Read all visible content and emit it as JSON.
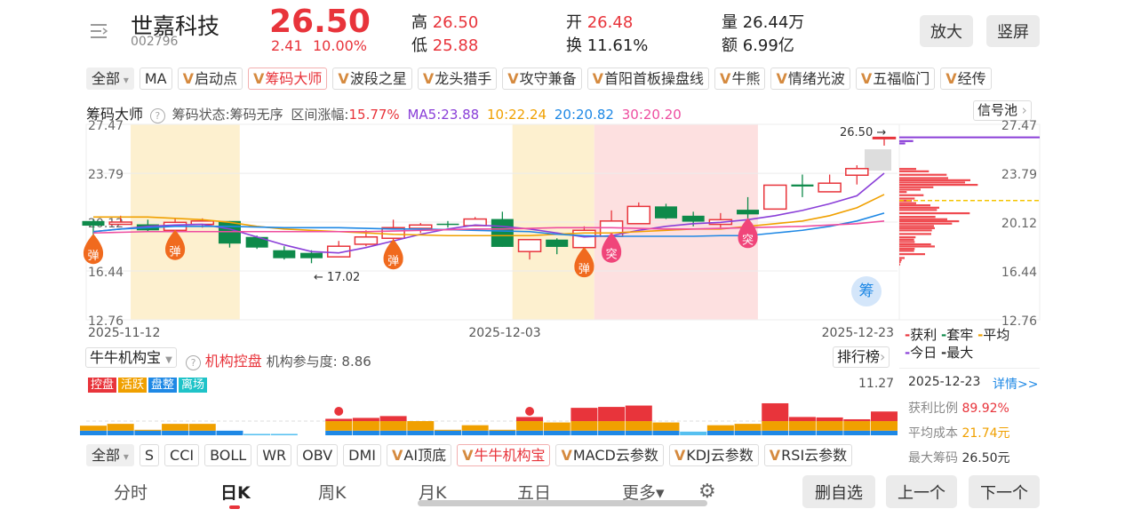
{
  "header": {
    "name": "世嘉科技",
    "code": "002796",
    "price": "26.50",
    "change": "2.41",
    "change_pct": "10.00%",
    "high_label": "高",
    "high": "26.50",
    "low_label": "低",
    "low": "25.88",
    "open_label": "开",
    "open": "26.48",
    "turnover_label": "换",
    "turnover": "11.61%",
    "volume_label": "量",
    "volume": "26.44万",
    "amount_label": "额",
    "amount": "6.99亿",
    "zoom_btn": "放大",
    "portrait_btn": "竖屏"
  },
  "indicator_tabs": [
    {
      "label": "全部",
      "type": "all"
    },
    {
      "label": "MA"
    },
    {
      "label": "启动点",
      "v": true
    },
    {
      "label": "筹码大师",
      "v": true,
      "selected": true
    },
    {
      "label": "波段之星",
      "v": true
    },
    {
      "label": "龙头猎手",
      "v": true
    },
    {
      "label": "攻守兼备",
      "v": true
    },
    {
      "label": "首阳首板操盘线",
      "v": true
    },
    {
      "label": "牛熊",
      "v": true
    },
    {
      "label": "情绪光波",
      "v": true
    },
    {
      "label": "五福临门",
      "v": true
    },
    {
      "label": "经传",
      "v": true
    }
  ],
  "v_mark": "V",
  "chip_line": {
    "title": "筹码大师",
    "help": "?",
    "status": "筹码状态:筹码无序",
    "range_label": "区间涨幅:",
    "range_value": "15.77%",
    "ma5": "MA5:23.88",
    "ma10": "10:22.24",
    "ma20": "20:20.82",
    "ma30": "30:20.20",
    "signal_btn": "信号池"
  },
  "colors": {
    "up": "#e8343b",
    "down": "#0e8a4a",
    "ma5": "#8a3fd8",
    "ma10": "#f0a000",
    "ma20": "#1e88e5",
    "ma30": "#ee4ea0",
    "band_yellow": "#fdf0cf",
    "band_pink": "#fde0e0"
  },
  "chart_data": {
    "type": "candlestick",
    "y_ticks": [
      "27.47",
      "23.79",
      "20.12",
      "16.44",
      "12.76"
    ],
    "ylim": [
      12.76,
      27.47
    ],
    "x_labels": [
      "2025-11-12",
      "2025-12-03",
      "2025-12-23"
    ],
    "candles": [
      [
        20.2,
        19.85,
        20.3,
        19.1
      ],
      [
        19.95,
        20.12,
        20.6,
        19.9
      ],
      [
        19.95,
        19.5,
        20.3,
        19.4
      ],
      [
        19.5,
        20.1,
        20.4,
        19.3
      ],
      [
        19.95,
        20.2,
        20.4,
        19.7
      ],
      [
        20.2,
        18.5,
        20.2,
        18.2
      ],
      [
        19.0,
        18.2,
        19.1,
        18.1
      ],
      [
        18.0,
        17.4,
        18.3,
        17.3
      ],
      [
        17.8,
        17.4,
        18.0,
        17.02
      ],
      [
        17.5,
        18.3,
        18.7,
        17.5
      ],
      [
        18.45,
        19.0,
        19.5,
        18.3
      ],
      [
        18.9,
        19.7,
        20.3,
        18.5
      ],
      [
        19.65,
        19.9,
        20.05,
        19.3
      ],
      [
        20.0,
        19.95,
        20.2,
        19.7
      ],
      [
        19.85,
        20.35,
        20.5,
        19.85
      ],
      [
        20.35,
        18.25,
        20.9,
        18.25
      ],
      [
        17.9,
        18.8,
        18.8,
        17.3
      ],
      [
        18.8,
        18.25,
        18.9,
        17.7
      ],
      [
        18.2,
        19.5,
        19.8,
        18.2
      ],
      [
        19.05,
        20.2,
        21.0,
        18.9
      ],
      [
        20.0,
        21.3,
        21.6,
        20.0
      ],
      [
        21.3,
        20.4,
        21.5,
        20.35
      ],
      [
        20.6,
        20.15,
        20.9,
        19.8
      ],
      [
        19.95,
        20.3,
        20.8,
        19.7
      ],
      [
        21.05,
        20.7,
        22.0,
        20.0
      ],
      [
        21.1,
        22.9,
        22.9,
        21.1
      ],
      [
        22.95,
        22.8,
        23.7,
        22.0
      ],
      [
        22.4,
        23.05,
        23.7,
        22.4
      ],
      [
        23.65,
        24.15,
        24.4,
        22.95
      ],
      [
        26.48,
        26.5,
        26.5,
        25.88
      ]
    ],
    "ma5": [
      19.4,
      19.6,
      19.8,
      19.9,
      19.95,
      19.6,
      19.0,
      18.4,
      17.9,
      17.8,
      18.2,
      18.7,
      19.2,
      19.6,
      19.9,
      19.8,
      19.6,
      19.3,
      19.0,
      19.1,
      19.5,
      19.8,
      20.0,
      20.1,
      20.3,
      20.6,
      21.0,
      21.5,
      22.1,
      23.8
    ],
    "ma10": [
      20.5,
      20.5,
      20.5,
      20.4,
      20.3,
      20.1,
      19.8,
      19.6,
      19.5,
      19.4,
      19.3,
      19.2,
      19.15,
      19.1,
      19.1,
      19.1,
      19.1,
      19.2,
      19.3,
      19.3,
      19.4,
      19.5,
      19.6,
      19.6,
      19.8,
      20.0,
      20.2,
      20.6,
      21.2,
      22.2
    ],
    "ma20": [
      19.4,
      19.6,
      19.7,
      19.8,
      19.8,
      19.8,
      19.75,
      19.7,
      19.7,
      19.7,
      19.65,
      19.6,
      19.6,
      19.55,
      19.5,
      19.45,
      19.4,
      19.2,
      19.1,
      19.05,
      19.05,
      19.05,
      19.05,
      19.1,
      19.1,
      19.3,
      19.5,
      19.8,
      20.2,
      20.8
    ],
    "ma30": [
      19.3,
      19.35,
      19.4,
      19.4,
      19.4,
      19.4,
      19.4,
      19.4,
      19.4,
      19.4,
      19.4,
      19.45,
      19.5,
      19.55,
      19.6,
      19.6,
      19.65,
      19.7,
      19.7,
      19.7,
      19.65,
      19.6,
      19.6,
      19.65,
      19.7,
      19.75,
      19.8,
      19.9,
      20.0,
      20.2
    ],
    "bands": [
      {
        "from": 2,
        "to": 5,
        "color": "yellow"
      },
      {
        "from": 16,
        "to": 18,
        "color": "yellow"
      },
      {
        "from": 19,
        "to": 24,
        "color": "pink"
      }
    ],
    "markers": [
      {
        "i": 0,
        "text": "弹",
        "price": 18.7
      },
      {
        "i": 3,
        "text": "弹",
        "price": 19.0
      },
      {
        "i": 11,
        "text": "弹",
        "price": 18.3
      },
      {
        "i": 18,
        "text": "弹",
        "price": 17.7
      },
      {
        "i": 19,
        "text": "突",
        "price": 18.8
      },
      {
        "i": 24,
        "text": "突",
        "price": 19.9
      }
    ],
    "low_annotation": "← 17.02",
    "last_price_label": "26.50 →",
    "chip_button": "筹",
    "chips": [
      [
        24.13,
        57
      ],
      [
        23.95,
        100
      ],
      [
        23.69,
        160
      ],
      [
        23.44,
        165
      ],
      [
        23.28,
        240
      ],
      [
        23.11,
        222
      ],
      [
        22.93,
        265
      ],
      [
        22.75,
        115
      ],
      [
        22.57,
        72
      ],
      [
        22.39,
        25
      ],
      [
        22.15,
        82
      ],
      [
        21.9,
        52
      ],
      [
        21.73,
        42
      ],
      [
        21.55,
        57
      ],
      [
        21.39,
        105
      ],
      [
        21.21,
        135
      ],
      [
        21.04,
        127
      ],
      [
        20.79,
        238
      ],
      [
        20.52,
        122
      ],
      [
        20.34,
        162
      ],
      [
        20.19,
        202
      ],
      [
        20.01,
        178
      ],
      [
        19.83,
        117
      ],
      [
        19.67,
        120
      ],
      [
        19.5,
        110
      ],
      [
        19.23,
        108
      ],
      [
        18.98,
        55
      ],
      [
        18.8,
        50
      ],
      [
        18.63,
        52
      ],
      [
        18.45,
        107
      ],
      [
        18.29,
        120
      ],
      [
        18.11,
        52
      ],
      [
        17.96,
        50
      ],
      [
        17.71,
        87
      ],
      [
        17.42,
        18
      ],
      [
        17.26,
        8
      ],
      [
        17.11,
        5
      ],
      [
        16.93,
        3
      ]
    ],
    "today_chips": [
      [
        26.23,
        47
      ],
      [
        26.05,
        20
      ]
    ],
    "avg_cost": 21.74
  },
  "chip_legend": {
    "profit": "获利",
    "trapped": "套牢",
    "average": "平均",
    "today": "今日",
    "max": "最大"
  },
  "chip_info": {
    "date": "2025-12-23",
    "detail": "详情>>",
    "profit_label": "获利比例",
    "profit": "89.92%",
    "avg_label": "平均成本",
    "avg": "21.74元",
    "max_label": "最大筹码",
    "max": "26.50元"
  },
  "inst": {
    "select": "牛牛机构宝",
    "help": "?",
    "title": "机构控盘",
    "degree": "机构参与度: 8.86",
    "rank_btn": "排行榜",
    "tags": [
      {
        "label": "控盘",
        "color": "#e8343b"
      },
      {
        "label": "活跃",
        "color": "#f0a000"
      },
      {
        "label": "盘整",
        "color": "#1e88e5"
      },
      {
        "label": "离场",
        "color": "#1fc3c8"
      }
    ],
    "max_label": "11.27",
    "ymax": 11.27,
    "bars": [
      [
        1,
        1.1,
        0
      ],
      [
        1,
        1.5,
        0
      ],
      [
        1,
        0.2,
        0
      ],
      [
        1,
        1.5,
        0
      ],
      [
        1,
        1.5,
        0
      ],
      [
        1,
        0,
        0
      ],
      [
        0.3,
        0,
        0
      ],
      [
        0.3,
        0,
        0
      ],
      [
        0,
        0,
        0
      ],
      [
        1,
        2.1,
        0.5
      ],
      [
        1,
        2.1,
        0.7
      ],
      [
        1,
        2.1,
        1.1
      ],
      [
        1,
        2.1,
        0
      ],
      [
        1,
        0.2,
        0
      ],
      [
        1,
        1.2,
        0
      ],
      [
        1,
        0.2,
        0
      ],
      [
        1,
        2.1,
        0.9
      ],
      [
        1,
        1.8,
        0
      ],
      [
        1,
        2.1,
        2.9
      ],
      [
        1,
        2.1,
        3.1
      ],
      [
        1,
        2.1,
        3.4
      ],
      [
        1,
        1.8,
        0
      ],
      [
        0.8,
        0,
        0
      ],
      [
        1,
        1.2,
        0
      ],
      [
        1,
        1.5,
        0
      ],
      [
        1,
        2.1,
        3.9
      ],
      [
        1,
        2.1,
        0.9
      ],
      [
        1,
        2.1,
        0.8
      ],
      [
        1,
        2.1,
        0.4
      ],
      [
        1,
        2.1,
        2.1
      ]
    ],
    "bar_markers": [
      9,
      16
    ]
  },
  "bottom_tabs": [
    {
      "label": "全部",
      "type": "all"
    },
    {
      "label": "S"
    },
    {
      "label": "CCI"
    },
    {
      "label": "BOLL"
    },
    {
      "label": "WR"
    },
    {
      "label": "OBV"
    },
    {
      "label": "DMI"
    },
    {
      "label": "AI顶底",
      "v": true
    },
    {
      "label": "牛牛机构宝",
      "v": true,
      "selected": true
    },
    {
      "label": "MACD云参数",
      "v": true
    },
    {
      "label": "KDJ云参数",
      "v": true
    },
    {
      "label": "RSI云参数",
      "v": true
    }
  ],
  "nav": {
    "tabs": [
      "分时",
      "日K",
      "周K",
      "月K",
      "五日",
      "更多▾"
    ],
    "active": 1,
    "delete_btn": "删自选",
    "prev_btn": "上一个",
    "next_btn": "下一个"
  }
}
